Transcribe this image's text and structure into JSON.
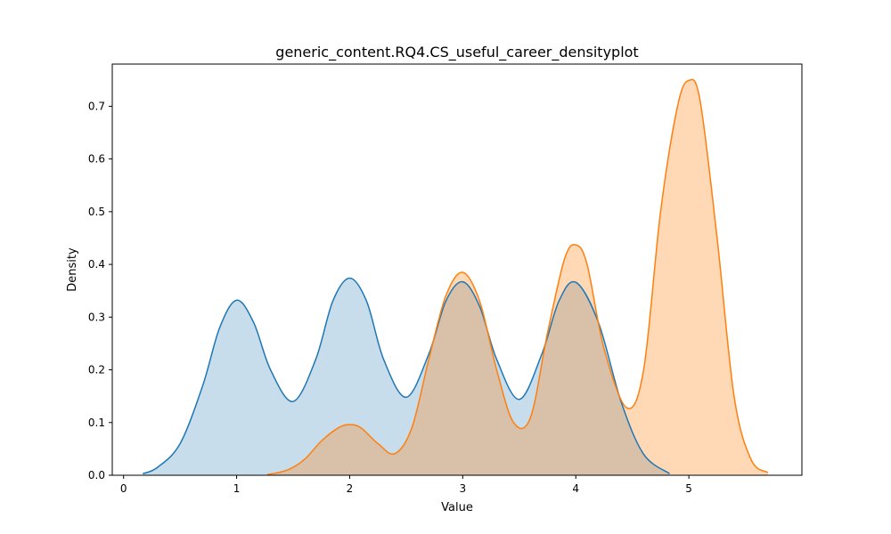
{
  "chart_data": {
    "type": "area",
    "title": "generic_content.RQ4.CS_useful_career_densityplot",
    "xlabel": "Value",
    "ylabel": "Density",
    "xlim": [
      -0.1,
      6.0
    ],
    "ylim": [
      0,
      0.78
    ],
    "xticks": [
      0,
      1,
      2,
      3,
      4,
      5
    ],
    "yticks": [
      0.0,
      0.1,
      0.2,
      0.3,
      0.4,
      0.5,
      0.6,
      0.7
    ],
    "ytick_labels": [
      "0.0",
      "0.1",
      "0.2",
      "0.3",
      "0.4",
      "0.5",
      "0.6",
      "0.7"
    ],
    "grid": false,
    "legend": "none",
    "series": [
      {
        "color": "#1f77b4",
        "fill_opacity": 0.25,
        "x": [
          0.17,
          0.3,
          0.5,
          0.7,
          0.85,
          1.0,
          1.15,
          1.3,
          1.5,
          1.7,
          1.85,
          2.0,
          2.15,
          2.3,
          2.5,
          2.7,
          2.85,
          3.0,
          3.15,
          3.3,
          3.5,
          3.7,
          3.85,
          4.0,
          4.2,
          4.4,
          4.6,
          4.83
        ],
        "y": [
          0.003,
          0.015,
          0.06,
          0.17,
          0.28,
          0.332,
          0.29,
          0.2,
          0.14,
          0.22,
          0.33,
          0.374,
          0.33,
          0.22,
          0.148,
          0.23,
          0.33,
          0.367,
          0.32,
          0.22,
          0.144,
          0.23,
          0.33,
          0.366,
          0.29,
          0.14,
          0.04,
          0.003
        ]
      },
      {
        "color": "#ff7f0e",
        "fill_opacity": 0.3,
        "x": [
          1.27,
          1.45,
          1.6,
          1.75,
          1.9,
          2.0,
          2.1,
          2.25,
          2.4,
          2.55,
          2.7,
          2.85,
          3.0,
          3.15,
          3.3,
          3.45,
          3.6,
          3.75,
          3.9,
          4.0,
          4.1,
          4.25,
          4.45,
          4.6,
          4.75,
          4.9,
          5.0,
          5.1,
          5.25,
          5.4,
          5.55,
          5.7
        ],
        "y": [
          0.001,
          0.01,
          0.03,
          0.065,
          0.09,
          0.096,
          0.09,
          0.06,
          0.041,
          0.09,
          0.22,
          0.34,
          0.385,
          0.33,
          0.2,
          0.1,
          0.11,
          0.27,
          0.41,
          0.437,
          0.4,
          0.24,
          0.128,
          0.2,
          0.5,
          0.7,
          0.749,
          0.71,
          0.45,
          0.15,
          0.03,
          0.005
        ]
      }
    ]
  }
}
